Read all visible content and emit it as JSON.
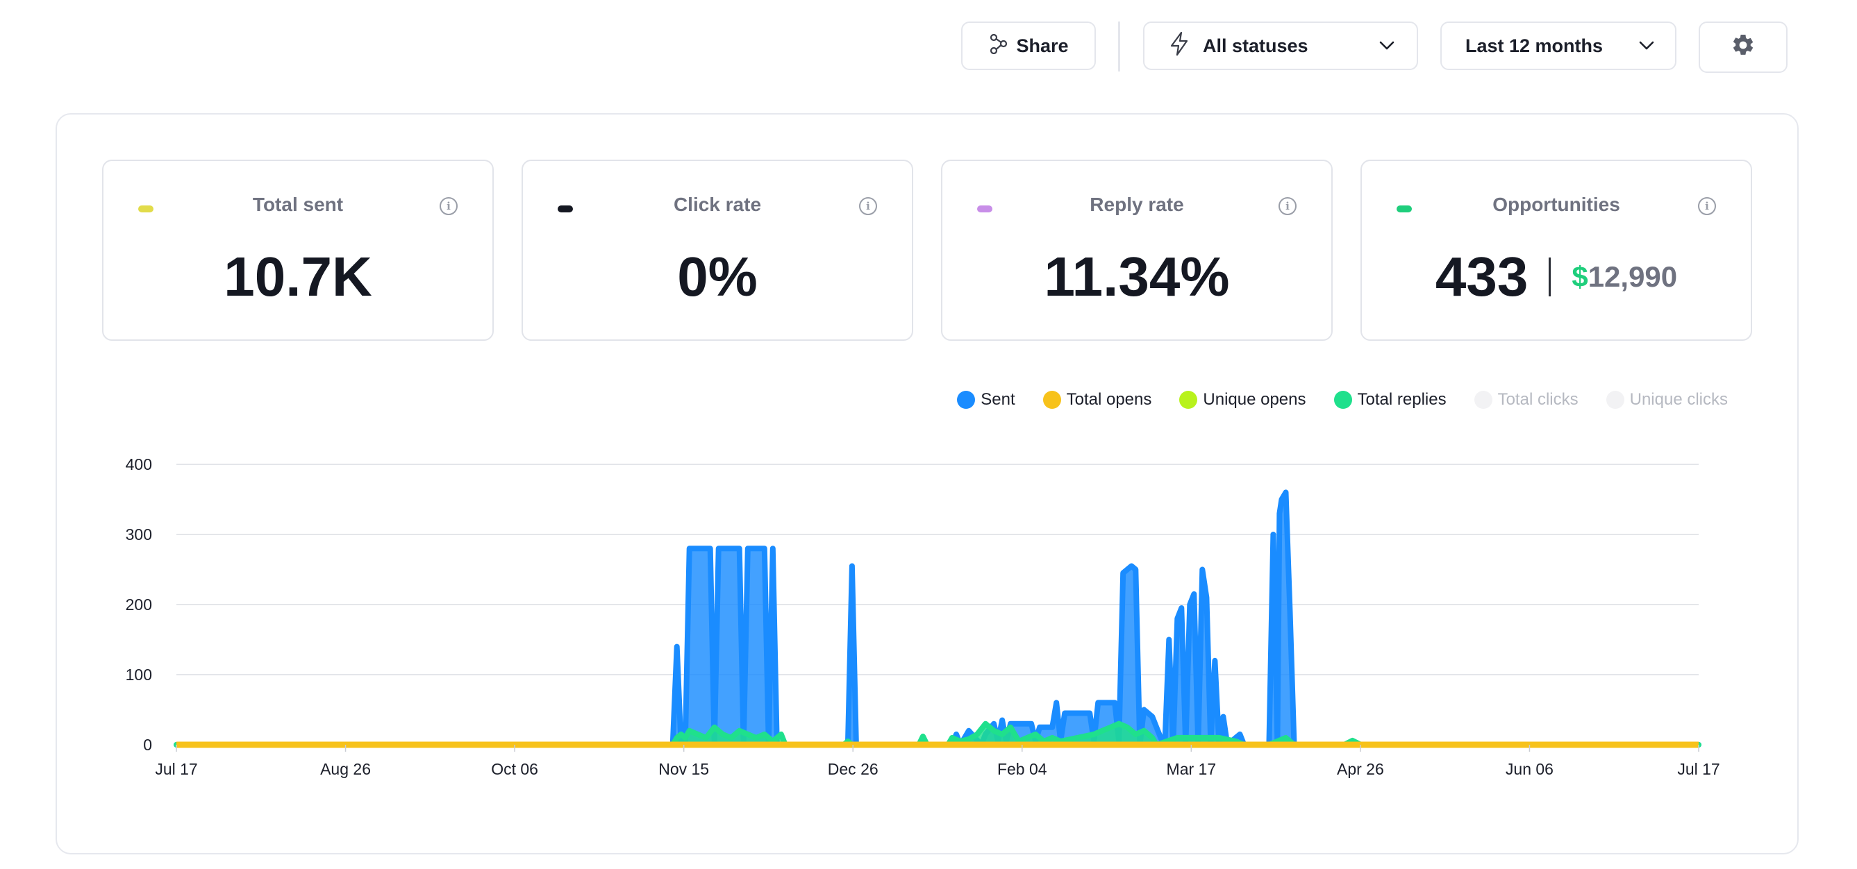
{
  "toolbar": {
    "share_label": "Share",
    "status_label": "All statuses",
    "period_label": "Last 12 months",
    "icons": [
      "share-icon",
      "bolt-icon",
      "chevron-down-icon",
      "gear-icon"
    ]
  },
  "stats": [
    {
      "title": "Total sent",
      "value": "10.7K",
      "color": "#e2dc4a"
    },
    {
      "title": "Click rate",
      "value": "0%",
      "color": "#151822"
    },
    {
      "title": "Reply rate",
      "value": "11.34%",
      "color": "#c88ee8"
    },
    {
      "title": "Opportunities",
      "value": "433",
      "money_symbol": "$",
      "money_value": "12,990",
      "color": "#1fce7c"
    }
  ],
  "info_icon_glyph": "i",
  "legend": [
    {
      "label": "Sent",
      "color": "#1a8cff",
      "active": true
    },
    {
      "label": "Total opens",
      "color": "#f7c21b",
      "active": true
    },
    {
      "label": "Unique opens",
      "color": "#b8f21c",
      "active": true
    },
    {
      "label": "Total replies",
      "color": "#1fe08c",
      "active": true
    },
    {
      "label": "Total clicks",
      "color": "#f2f2f4",
      "active": false
    },
    {
      "label": "Unique clicks",
      "color": "#f2f2f4",
      "active": false
    }
  ],
  "chart_data": {
    "type": "area",
    "x_ticks": [
      "Jul 17",
      "Aug 26",
      "Oct 06",
      "Nov 15",
      "Dec 26",
      "Feb 04",
      "Mar 17",
      "Apr 26",
      "Jun 06",
      "Jul 17"
    ],
    "y_ticks": [
      0,
      100,
      200,
      300,
      400
    ],
    "ylim": [
      0,
      400
    ],
    "x_day_range": [
      0,
      365
    ],
    "grid": true,
    "legend_position": "top-right",
    "series": [
      {
        "name": "Sent",
        "color": "#1a8cff",
        "points": [
          [
            0,
            0
          ],
          [
            119,
            0
          ],
          [
            120,
            140
          ],
          [
            121,
            0
          ],
          [
            122,
            0
          ],
          [
            123,
            280
          ],
          [
            128,
            280
          ],
          [
            129,
            0
          ],
          [
            130,
            280
          ],
          [
            135,
            280
          ],
          [
            136,
            0
          ],
          [
            137,
            280
          ],
          [
            141,
            280
          ],
          [
            142,
            0
          ],
          [
            143,
            280
          ],
          [
            144,
            0
          ],
          [
            161,
            0
          ],
          [
            162,
            255
          ],
          [
            163,
            0
          ],
          [
            186,
            0
          ],
          [
            187,
            15
          ],
          [
            188,
            0
          ],
          [
            190,
            20
          ],
          [
            193,
            0
          ],
          [
            194,
            15
          ],
          [
            196,
            30
          ],
          [
            197,
            5
          ],
          [
            198,
            35
          ],
          [
            199,
            5
          ],
          [
            200,
            30
          ],
          [
            205,
            30
          ],
          [
            206,
            5
          ],
          [
            207,
            25
          ],
          [
            210,
            25
          ],
          [
            211,
            60
          ],
          [
            212,
            5
          ],
          [
            213,
            45
          ],
          [
            219,
            45
          ],
          [
            220,
            5
          ],
          [
            221,
            60
          ],
          [
            225,
            60
          ],
          [
            226,
            5
          ],
          [
            227,
            245
          ],
          [
            229,
            255
          ],
          [
            230,
            250
          ],
          [
            231,
            0
          ],
          [
            232,
            50
          ],
          [
            234,
            40
          ],
          [
            235,
            25
          ],
          [
            236,
            10
          ],
          [
            237,
            0
          ],
          [
            238,
            150
          ],
          [
            239,
            0
          ],
          [
            240,
            180
          ],
          [
            241,
            195
          ],
          [
            242,
            0
          ],
          [
            243,
            200
          ],
          [
            244,
            215
          ],
          [
            245,
            0
          ],
          [
            246,
            250
          ],
          [
            247,
            210
          ],
          [
            248,
            0
          ],
          [
            249,
            120
          ],
          [
            250,
            0
          ],
          [
            251,
            40
          ],
          [
            252,
            0
          ],
          [
            255,
            15
          ],
          [
            256,
            0
          ],
          [
            262,
            0
          ],
          [
            263,
            300
          ],
          [
            264,
            0
          ],
          [
            264.5,
            330
          ],
          [
            265,
            350
          ],
          [
            266,
            360
          ],
          [
            267,
            190
          ],
          [
            268,
            0
          ],
          [
            365,
            0
          ]
        ]
      },
      {
        "name": "Total replies",
        "color": "#1fe08c",
        "points": [
          [
            0,
            0
          ],
          [
            119,
            0
          ],
          [
            120,
            10
          ],
          [
            121,
            15
          ],
          [
            122,
            10
          ],
          [
            123,
            20
          ],
          [
            125,
            15
          ],
          [
            127,
            10
          ],
          [
            129,
            25
          ],
          [
            131,
            15
          ],
          [
            133,
            10
          ],
          [
            135,
            20
          ],
          [
            137,
            15
          ],
          [
            139,
            10
          ],
          [
            141,
            15
          ],
          [
            143,
            5
          ],
          [
            145,
            15
          ],
          [
            146,
            0
          ],
          [
            160,
            0
          ],
          [
            161,
            5
          ],
          [
            162,
            0
          ],
          [
            178,
            0
          ],
          [
            179,
            12
          ],
          [
            180,
            0
          ],
          [
            185,
            0
          ],
          [
            186,
            10
          ],
          [
            188,
            5
          ],
          [
            190,
            8
          ],
          [
            192,
            15
          ],
          [
            194,
            30
          ],
          [
            196,
            20
          ],
          [
            198,
            15
          ],
          [
            200,
            25
          ],
          [
            202,
            5
          ],
          [
            204,
            10
          ],
          [
            206,
            15
          ],
          [
            208,
            5
          ],
          [
            210,
            10
          ],
          [
            212,
            5
          ],
          [
            220,
            15
          ],
          [
            222,
            20
          ],
          [
            224,
            25
          ],
          [
            226,
            30
          ],
          [
            228,
            25
          ],
          [
            230,
            15
          ],
          [
            232,
            20
          ],
          [
            234,
            10
          ],
          [
            235,
            0
          ],
          [
            240,
            10
          ],
          [
            250,
            10
          ],
          [
            254,
            5
          ],
          [
            256,
            0
          ],
          [
            262,
            0
          ],
          [
            264,
            5
          ],
          [
            266,
            10
          ],
          [
            268,
            0
          ],
          [
            280,
            0
          ],
          [
            282,
            6
          ],
          [
            284,
            0
          ],
          [
            365,
            0
          ]
        ]
      },
      {
        "name": "Total opens",
        "color": "#f7c21b",
        "points": [
          [
            0,
            0
          ],
          [
            365,
            0
          ]
        ]
      }
    ]
  }
}
